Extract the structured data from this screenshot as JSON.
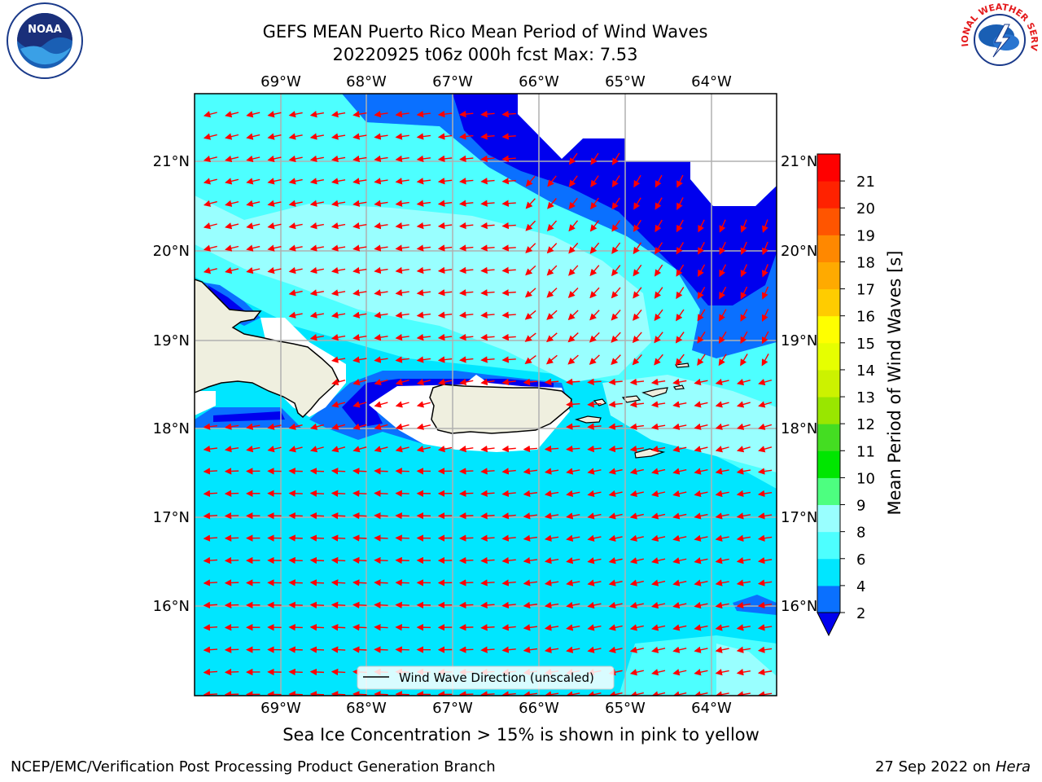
{
  "title": {
    "line1": "GEFS MEAN Puerto Rico Mean Period of Wind Waves",
    "line2": "20220925 t06z 000h fcst   Max: 7.53"
  },
  "map": {
    "lon_ticks_top": [
      "69°W",
      "68°W",
      "67°W",
      "66°W",
      "65°W",
      "64°W"
    ],
    "lon_ticks_bottom": [
      "69°W",
      "68°W",
      "67°W",
      "66°W",
      "65°W",
      "64°W"
    ],
    "lat_ticks_left": [
      "21°N",
      "20°N",
      "19°N",
      "18°N",
      "17°N",
      "16°N"
    ],
    "lat_ticks_right": [
      "21°N",
      "20°N",
      "19°N",
      "18°N",
      "17°N",
      "16°N"
    ],
    "lon_range": [
      -70.0,
      -63.25
    ],
    "lat_range": [
      15.0,
      21.75
    ],
    "legend_label": "Wind Wave Direction (unscaled)",
    "arrow_color": "#ff0000",
    "land_color": "#efefdf"
  },
  "colorbar": {
    "label": "Mean Period of Wind Waves [s]",
    "ticks": [
      "2",
      "4",
      "6",
      "8",
      "9",
      "10",
      "11",
      "12",
      "13",
      "14",
      "15",
      "16",
      "17",
      "18",
      "19",
      "20",
      "21"
    ],
    "colors": [
      "#0a70ff",
      "#00e6ff",
      "#4dffff",
      "#99ffff",
      "#4dff80",
      "#00e600",
      "#44dd22",
      "#99e600",
      "#ccf200",
      "#e6ff00",
      "#ffff00",
      "#ffcc00",
      "#ffaa00",
      "#ff8800",
      "#ff5500",
      "#ff2200",
      "#ff0000"
    ],
    "underflow_color": "#0000ee"
  },
  "logos": {
    "noaa_text": "NOAA",
    "nws_text": "NATIONAL WEATHER SERVICE"
  },
  "caption": "Sea Ice Concentration > 15% is shown in pink to yellow",
  "footer": {
    "left": "NCEP/EMC/Verification Post Processing Product Generation Branch",
    "right_prefix": "27 Sep 2022 on",
    "right_host": "Hera"
  }
}
